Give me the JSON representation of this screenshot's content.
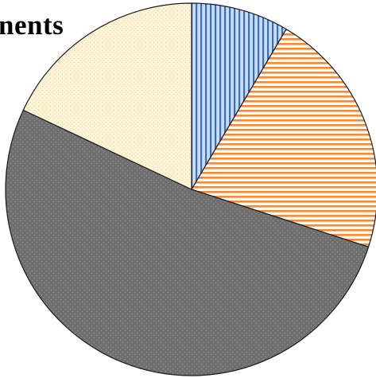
{
  "chart_data": {
    "type": "pie",
    "title": "nents",
    "start_angle_deg": 0,
    "direction": "clockwise",
    "slices": [
      {
        "value": 8.5,
        "fill": "#c9dcf5",
        "pattern": "vertical-stripes",
        "stripe": "#3d6fb8"
      },
      {
        "value": 21.5,
        "fill": "#ffffff",
        "pattern": "horizontal-stripes",
        "stripe": "#ee8a3c"
      },
      {
        "value": 52.0,
        "fill": "#6e6e6e",
        "pattern": "dots",
        "stripe": "#8e8e8e"
      },
      {
        "value": 18.0,
        "fill": "#fdf3d6",
        "pattern": "fine-dots",
        "stripe": "#e6d6a8"
      }
    ]
  }
}
